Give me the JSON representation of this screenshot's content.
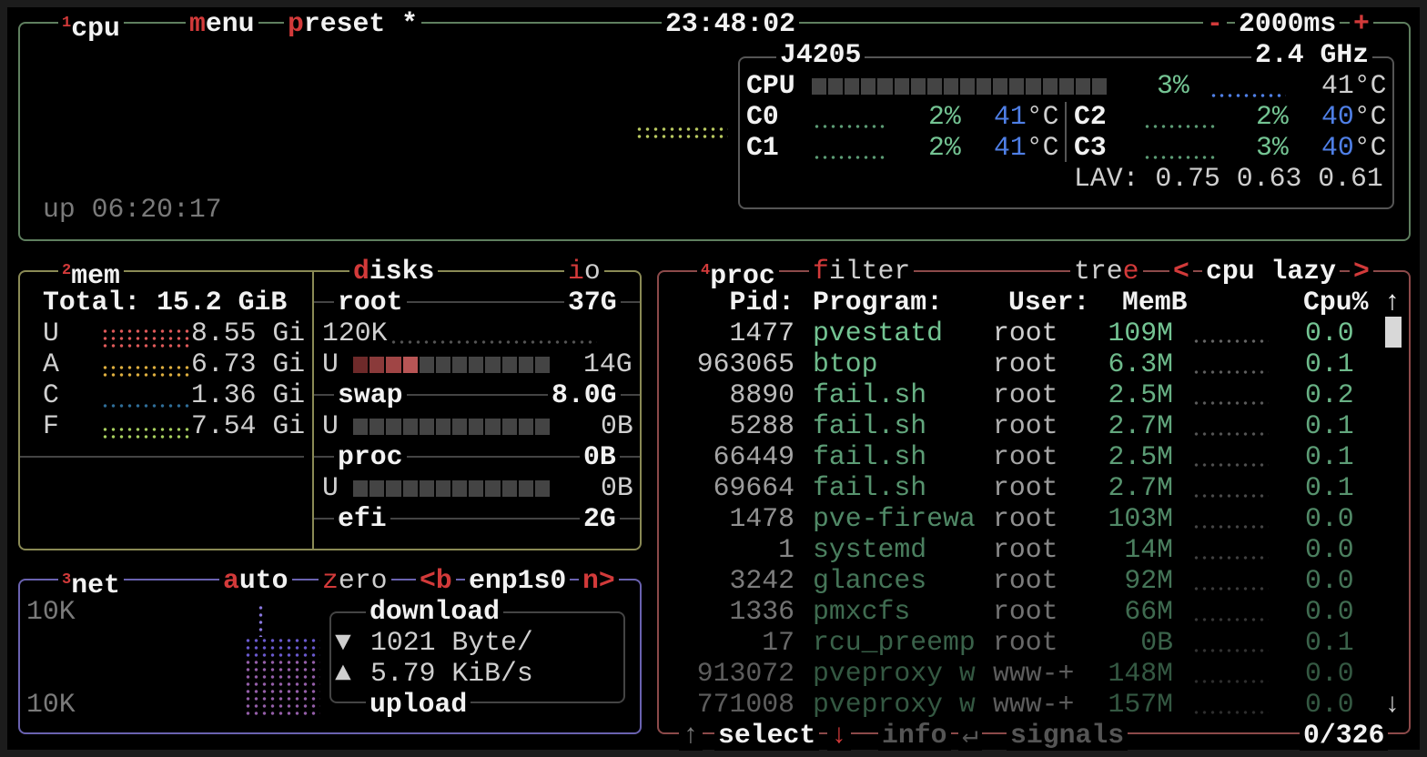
{
  "colors": {
    "cpu_border": "#5f7f5f",
    "mem_border": "#8a8a55",
    "net_border": "#6a62b0",
    "proc_border": "#8c4a4a",
    "accent": "#d23a3a",
    "green": "#74c493",
    "blue": "#4f7fe6"
  },
  "cpu": {
    "num": "1",
    "title": "cpu",
    "menu_hot": "m",
    "menu_rest": "enu",
    "preset_hot": "p",
    "preset_rest": "reset *",
    "clock": "23:48:02",
    "dec": "-",
    "interval": "2000ms",
    "inc": "+",
    "model": "J4205",
    "freq": "2.4 GHz",
    "total_label": "CPU",
    "total_pct": "3%",
    "total_temp": "41°C",
    "total_usage": 0.03,
    "cores": [
      {
        "label": "C0",
        "pct": "2%",
        "temp": "41",
        "unit": "°C"
      },
      {
        "label": "C1",
        "pct": "2%",
        "temp": "41",
        "unit": "°C"
      },
      {
        "label": "C2",
        "pct": "2%",
        "temp": "40",
        "unit": "°C"
      },
      {
        "label": "C3",
        "pct": "3%",
        "temp": "40",
        "unit": "°C"
      }
    ],
    "lav": "LAV: 0.75 0.63 0.61",
    "uptime": "up 06:20:17"
  },
  "mem": {
    "num": "2",
    "title": "mem",
    "total": "Total: 15.2 GiB",
    "rows": [
      {
        "label": "U",
        "value": "8.55 Gi",
        "color": "#e05a5a"
      },
      {
        "label": "A",
        "value": "6.73 Gi",
        "color": "#e0b040"
      },
      {
        "label": "C",
        "value": "1.36 Gi",
        "color": "#2f6f9a"
      },
      {
        "label": "F",
        "value": "7.54 Gi",
        "color": "#a8d060"
      }
    ]
  },
  "disks": {
    "title_hot": "d",
    "title_rest": "isks",
    "io_hot": "i",
    "io_rest": "o",
    "root": {
      "name": "root",
      "size": "37G",
      "io": "120K",
      "used_label": "U",
      "used": "14G",
      "fill": 0.33
    },
    "swap": {
      "name": "swap",
      "size": "8.0G",
      "used_label": "U",
      "used": "0B",
      "fill": 0
    },
    "proc": {
      "name": "proc",
      "size": "0B",
      "used_label": "U",
      "used": "0B",
      "fill": 0
    },
    "efi": {
      "name": "efi",
      "size": "2G"
    }
  },
  "net": {
    "num": "3",
    "title": "net",
    "auto_hot": "a",
    "auto_rest": "uto",
    "zero_hot": "z",
    "zero_rest": "ero",
    "prev": "<b",
    "iface": "enp1s0",
    "next": "n>",
    "scale_top": "10K",
    "scale_bottom": "10K",
    "download_label": "download",
    "down_icon": "▼",
    "down_rate": "1021 Byte/",
    "up_icon": "▲",
    "up_rate": "5.79 KiB/s",
    "upload_label": "upload"
  },
  "proc": {
    "num": "4",
    "title": "proc",
    "filter_hot": "f",
    "filter_rest": "ilter",
    "tree_rest": "tre",
    "tree_hot": "e",
    "sort_prev": "<",
    "sort": "cpu lazy",
    "sort_next": ">",
    "headers": {
      "pid": "Pid:",
      "program": "Program:",
      "user": "User:",
      "mem": "MemB",
      "cpu": "Cpu%"
    },
    "scroll_up": "↑",
    "scroll_down": "↓",
    "rows": [
      {
        "pid": "1477",
        "program": "pvestatd",
        "user": "root",
        "mem": "109M",
        "cpu": "0.0"
      },
      {
        "pid": "963065",
        "program": "btop",
        "user": "root",
        "mem": "6.3M",
        "cpu": "0.1"
      },
      {
        "pid": "8890",
        "program": "fail.sh",
        "user": "root",
        "mem": "2.5M",
        "cpu": "0.2"
      },
      {
        "pid": "5288",
        "program": "fail.sh",
        "user": "root",
        "mem": "2.7M",
        "cpu": "0.1"
      },
      {
        "pid": "66449",
        "program": "fail.sh",
        "user": "root",
        "mem": "2.5M",
        "cpu": "0.1"
      },
      {
        "pid": "69664",
        "program": "fail.sh",
        "user": "root",
        "mem": "2.7M",
        "cpu": "0.1"
      },
      {
        "pid": "1478",
        "program": "pve-firewa",
        "user": "root",
        "mem": "103M",
        "cpu": "0.0"
      },
      {
        "pid": "1",
        "program": "systemd",
        "user": "root",
        "mem": "14M",
        "cpu": "0.0"
      },
      {
        "pid": "3242",
        "program": "glances",
        "user": "root",
        "mem": "92M",
        "cpu": "0.0"
      },
      {
        "pid": "1336",
        "program": "pmxcfs",
        "user": "root",
        "mem": "66M",
        "cpu": "0.0"
      },
      {
        "pid": "17",
        "program": "rcu_preemp",
        "user": "root",
        "mem": "0B",
        "cpu": "0.1"
      },
      {
        "pid": "913072",
        "program": "pveproxy w",
        "user": "www-+",
        "mem": "148M",
        "cpu": "0.0"
      },
      {
        "pid": "771008",
        "program": "pveproxy w",
        "user": "www-+",
        "mem": "157M",
        "cpu": "0.0"
      }
    ],
    "footer": {
      "up": "↑",
      "select": "select",
      "down": "↓",
      "info": "info",
      "enter": "↵",
      "signals": "signals",
      "count": "0/326"
    }
  }
}
